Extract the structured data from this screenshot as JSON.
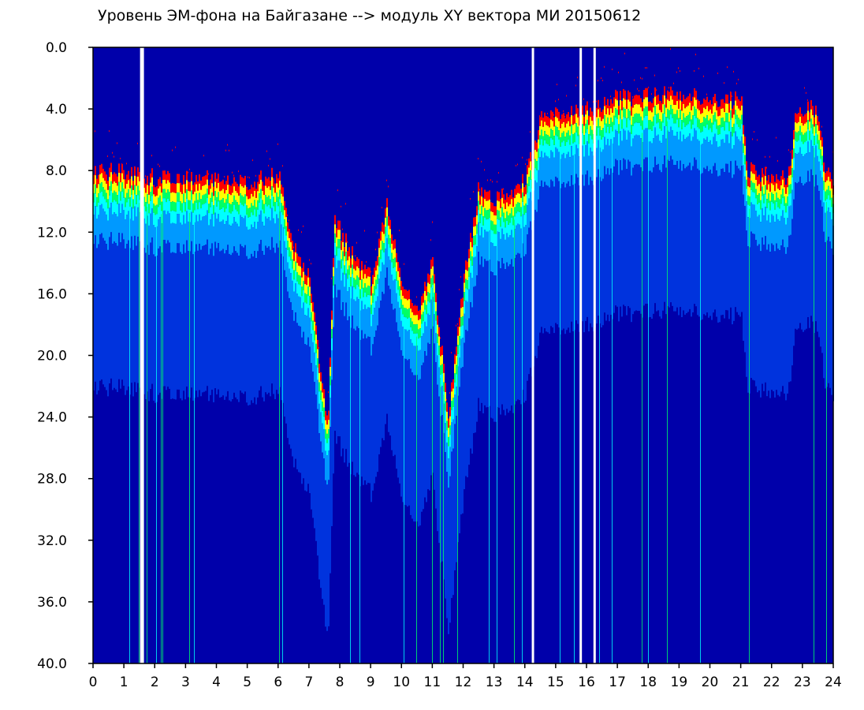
{
  "chart_data": {
    "type": "heatmap",
    "title": "Уровень ЭМ-фона на Байгазане  --> модуль XY вектора МИ  20150612",
    "xlabel": "",
    "ylabel": "",
    "xlim": [
      0,
      24
    ],
    "ylim": [
      40,
      0
    ],
    "x_ticks": [
      "0",
      "1",
      "2",
      "3",
      "4",
      "5",
      "6",
      "7",
      "8",
      "9",
      "10",
      "11",
      "12",
      "13",
      "14",
      "15",
      "16",
      "17",
      "18",
      "19",
      "20",
      "21",
      "22",
      "23",
      "24"
    ],
    "y_ticks": [
      "0.0",
      "4.0",
      "8.0",
      "12.0",
      "16.0",
      "20.0",
      "24.0",
      "28.0",
      "32.0",
      "36.0",
      "40.0"
    ],
    "grid": false,
    "colorscale": [
      "#0000aa",
      "#0033dd",
      "#0099ff",
      "#00ffff",
      "#00ff66",
      "#ffff00",
      "#ff0000"
    ],
    "noise_floor": [
      {
        "hour": 0.0,
        "top": 8.0
      },
      {
        "hour": 1.5,
        "top": 8.2
      },
      {
        "hour": 2.0,
        "top": 8.5
      },
      {
        "hour": 3.0,
        "top": 8.5
      },
      {
        "hour": 4.0,
        "top": 8.5
      },
      {
        "hour": 5.0,
        "top": 8.8
      },
      {
        "hour": 6.0,
        "top": 8.3
      },
      {
        "hour": 6.5,
        "top": 13.0
      },
      {
        "hour": 7.0,
        "top": 15.0
      },
      {
        "hour": 7.6,
        "top": 25.0
      },
      {
        "hour": 7.8,
        "top": 11.0
      },
      {
        "hour": 8.5,
        "top": 14.0
      },
      {
        "hour": 9.0,
        "top": 15.0
      },
      {
        "hour": 9.5,
        "top": 10.0
      },
      {
        "hour": 10.0,
        "top": 15.0
      },
      {
        "hour": 10.5,
        "top": 17.0
      },
      {
        "hour": 11.0,
        "top": 14.0
      },
      {
        "hour": 11.5,
        "top": 24.0
      },
      {
        "hour": 12.0,
        "top": 15.0
      },
      {
        "hour": 12.5,
        "top": 9.0
      },
      {
        "hour": 13.0,
        "top": 10.0
      },
      {
        "hour": 13.5,
        "top": 9.5
      },
      {
        "hour": 14.0,
        "top": 8.5
      },
      {
        "hour": 14.5,
        "top": 4.5
      },
      {
        "hour": 16.0,
        "top": 4.0
      },
      {
        "hour": 17.0,
        "top": 3.3
      },
      {
        "hour": 19.0,
        "top": 3.0
      },
      {
        "hour": 21.0,
        "top": 3.5
      },
      {
        "hour": 21.2,
        "top": 8.0
      },
      {
        "hour": 22.5,
        "top": 8.5
      },
      {
        "hour": 22.8,
        "top": 4.0
      },
      {
        "hour": 23.5,
        "top": 4.0
      },
      {
        "hour": 23.7,
        "top": 8.0
      },
      {
        "hour": 24.0,
        "top": 9.0
      }
    ],
    "data_gaps_hours": [
      1.55,
      1.6,
      14.25,
      15.8,
      16.25
    ]
  }
}
